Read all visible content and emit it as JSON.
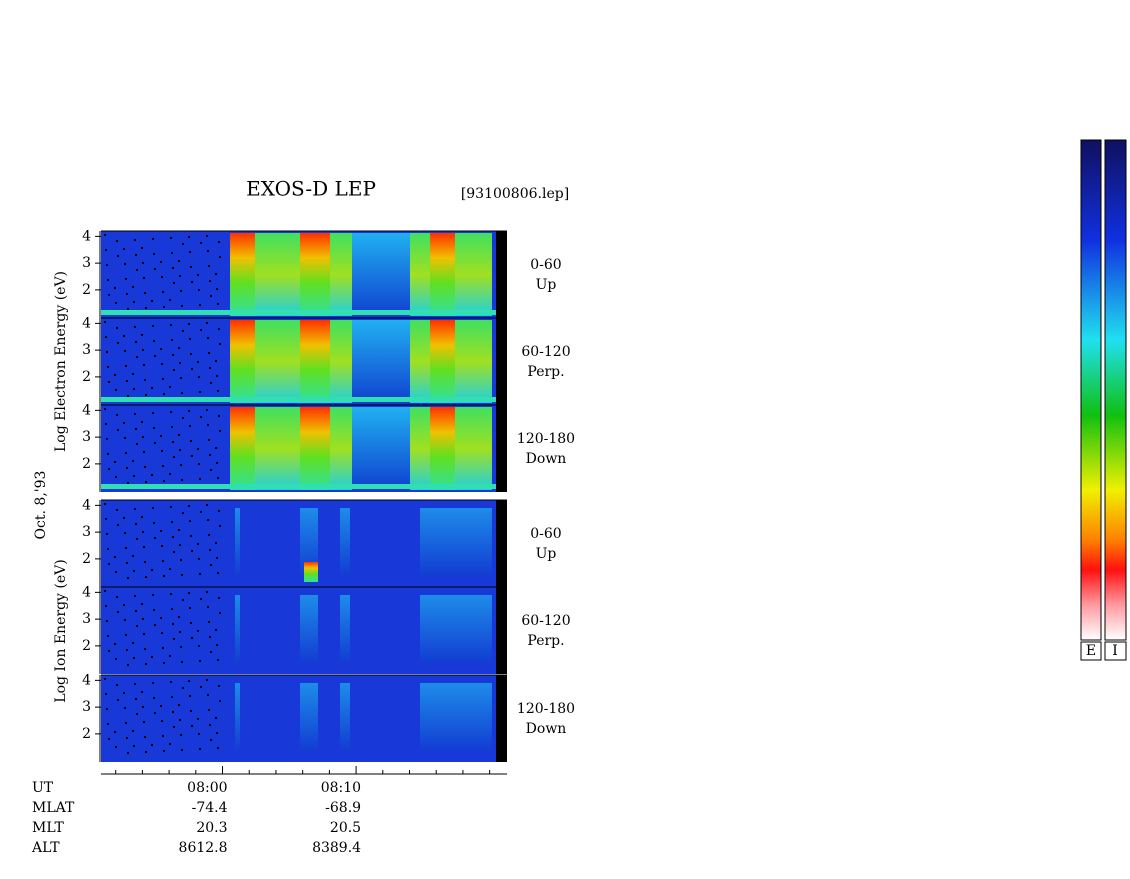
{
  "chart_data": {
    "type": "spectrogram",
    "title": "EXOS-D LEP",
    "file": "[93100806.lep]",
    "date": "Oct. 8,'93",
    "groups": [
      {
        "ylabel": "Log Electron Energy (eV)",
        "panels": [
          {
            "angle": "0-60",
            "direction": "Up"
          },
          {
            "angle": "60-120",
            "direction": "Perp."
          },
          {
            "angle": "120-180",
            "direction": "Down"
          }
        ]
      },
      {
        "ylabel": "Log Ion Energy (eV)",
        "panels": [
          {
            "angle": "0-60",
            "direction": "Up"
          },
          {
            "angle": "60-120",
            "direction": "Perp."
          },
          {
            "angle": "120-180",
            "direction": "Down"
          }
        ]
      }
    ],
    "ylim": [
      0.95,
      4.2
    ],
    "yticks": [
      2,
      3,
      4
    ],
    "xlim": [
      470.9,
      501.3
    ],
    "xticks": [
      {
        "value": 480,
        "label": "08:00"
      },
      {
        "value": 490,
        "label": "08:10"
      }
    ],
    "xminor": [
      472,
      474,
      476,
      478,
      482,
      484,
      486,
      488,
      492,
      494,
      496,
      498,
      500
    ],
    "info": [
      {
        "label": "UT"
      },
      {
        "label": "MLAT",
        "values": [
          -74.4,
          -68.9
        ]
      },
      {
        "label": "MLT",
        "values": [
          20.3,
          20.5
        ]
      },
      {
        "label": "ALT",
        "values": [
          8612.8,
          8389.4
        ]
      }
    ],
    "colorbar_labels": [
      "E",
      "I"
    ]
  }
}
